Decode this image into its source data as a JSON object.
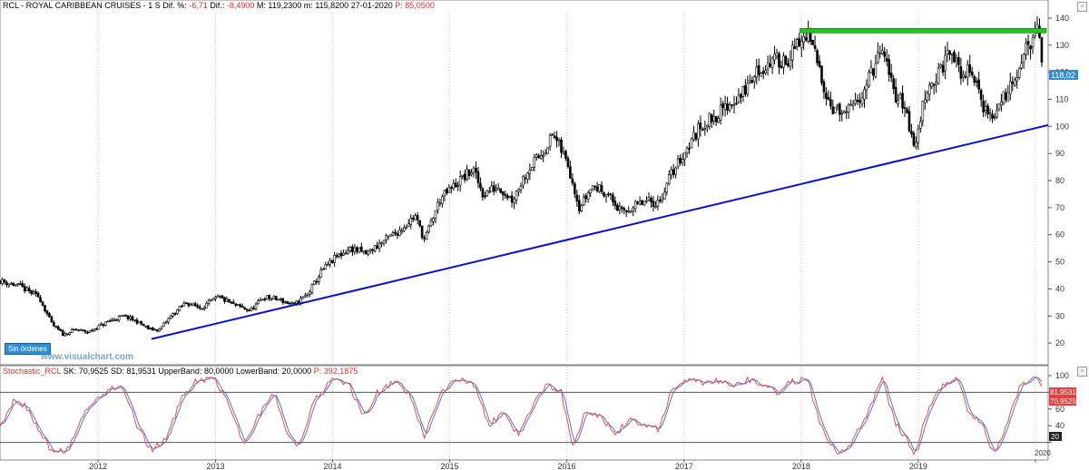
{
  "header": {
    "symbol": "RCL",
    "name": "ROYAL CARIBBEAN CRUISES",
    "period": "1 S",
    "dif_pct_label": "Dif. %:",
    "dif_pct": "-6,71",
    "dif_label": "Dif.:",
    "dif": "-8,4900",
    "max_label": "M:",
    "max": "119,2300",
    "min_label": "m:",
    "min": "115,8200",
    "date": "27-01-2020",
    "price_label": "P:",
    "price": "85,0500"
  },
  "badges": {
    "orders": "Sin órdenes",
    "watermark": "www.visualchart.com",
    "last_price": "118,02"
  },
  "stoch_header": {
    "name": "Stochastic_RCL",
    "sk_label": "SK:",
    "sk": "70,9525",
    "sd_label": "SD:",
    "sd": "81,9531",
    "upper_label": "UpperBand:",
    "upper": "80,0000",
    "lower_label": "LowerBand:",
    "lower": "20,0000",
    "p_label": "P:",
    "p": "392,1875"
  },
  "stoch_labels": {
    "sd_value": "81,9531",
    "sk_value": "70,9525",
    "lower_band": "20",
    "year_cut": "2020"
  },
  "colors": {
    "bullish": "#000000",
    "trendline": "#0a10c8",
    "resistance": "#22c422",
    "sk_line": "#e05050",
    "sd_line": "#4a78d8",
    "price_tag": "#2f8fd6",
    "stoch_tag": "#e04040"
  },
  "chart_data": [
    {
      "type": "candlestick",
      "title": "RCL - ROYAL CARIBBEAN CRUISES - 1 S",
      "ylim": [
        12,
        142
      ],
      "yticks": [
        20,
        30,
        40,
        50,
        60,
        70,
        80,
        90,
        100,
        110,
        120,
        130,
        140
      ],
      "xlim": [
        "2011-03-01",
        "2020-02-10"
      ],
      "xticks": [
        "2012",
        "2013",
        "2014",
        "2015",
        "2016",
        "2017",
        "2018",
        "2019",
        "2020"
      ],
      "last_price": 118.02,
      "price_path": [
        [
          "2011-03-01",
          43
        ],
        [
          "2011-05-01",
          41
        ],
        [
          "2011-07-01",
          37
        ],
        [
          "2011-08-10",
          27
        ],
        [
          "2011-09-15",
          23
        ],
        [
          "2011-10-20",
          25
        ],
        [
          "2011-12-01",
          24
        ],
        [
          "2012-02-01",
          28
        ],
        [
          "2012-03-20",
          30
        ],
        [
          "2012-05-01",
          28
        ],
        [
          "2012-06-10",
          25
        ],
        [
          "2012-07-10",
          25
        ],
        [
          "2012-08-15",
          30
        ],
        [
          "2012-10-01",
          35
        ],
        [
          "2012-11-15",
          33
        ],
        [
          "2013-01-10",
          37
        ],
        [
          "2013-03-01",
          34
        ],
        [
          "2013-04-20",
          32
        ],
        [
          "2013-06-01",
          37
        ],
        [
          "2013-07-20",
          36
        ],
        [
          "2013-09-01",
          34
        ],
        [
          "2013-10-15",
          38
        ],
        [
          "2013-12-01",
          47
        ],
        [
          "2014-01-15",
          52
        ],
        [
          "2014-03-01",
          55
        ],
        [
          "2014-04-15",
          53
        ],
        [
          "2014-06-01",
          57
        ],
        [
          "2014-08-01",
          62
        ],
        [
          "2014-09-15",
          67
        ],
        [
          "2014-10-15",
          58
        ],
        [
          "2014-12-01",
          73
        ],
        [
          "2015-02-01",
          80
        ],
        [
          "2015-03-15",
          84
        ],
        [
          "2015-04-15",
          75
        ],
        [
          "2015-06-01",
          78
        ],
        [
          "2015-07-15",
          73
        ],
        [
          "2015-09-01",
          84
        ],
        [
          "2015-10-15",
          90
        ],
        [
          "2015-11-20",
          97
        ],
        [
          "2016-01-05",
          86
        ],
        [
          "2016-02-10",
          70
        ],
        [
          "2016-03-20",
          78
        ],
        [
          "2016-05-01",
          76
        ],
        [
          "2016-06-20",
          68
        ],
        [
          "2016-07-20",
          70
        ],
        [
          "2016-09-01",
          72
        ],
        [
          "2016-10-15",
          72
        ],
        [
          "2016-11-20",
          82
        ],
        [
          "2017-01-10",
          92
        ],
        [
          "2017-02-20",
          100
        ],
        [
          "2017-04-10",
          104
        ],
        [
          "2017-05-20",
          108
        ],
        [
          "2017-07-01",
          112
        ],
        [
          "2017-08-15",
          120
        ],
        [
          "2017-10-01",
          124
        ],
        [
          "2017-11-20",
          125
        ],
        [
          "2018-01-20",
          134
        ],
        [
          "2018-02-20",
          124
        ],
        [
          "2018-04-01",
          108
        ],
        [
          "2018-05-15",
          104
        ],
        [
          "2018-06-20",
          108
        ],
        [
          "2018-08-01",
          118
        ],
        [
          "2018-09-10",
          128
        ],
        [
          "2018-10-20",
          112
        ],
        [
          "2018-11-20",
          108
        ],
        [
          "2018-12-20",
          91
        ],
        [
          "2019-01-25",
          114
        ],
        [
          "2019-03-01",
          118
        ],
        [
          "2019-04-10",
          128
        ],
        [
          "2019-05-10",
          120
        ],
        [
          "2019-06-20",
          120
        ],
        [
          "2019-07-20",
          108
        ],
        [
          "2019-08-20",
          103
        ],
        [
          "2019-09-20",
          110
        ],
        [
          "2019-11-01",
          120
        ],
        [
          "2019-12-10",
          130
        ],
        [
          "2020-01-10",
          135
        ],
        [
          "2020-01-27",
          118
        ]
      ]
    },
    {
      "type": "line",
      "title": "Stochastic_RCL",
      "ylim": [
        0,
        100
      ],
      "yticks": [
        0,
        20,
        40,
        60,
        80,
        100
      ],
      "upper_band": 80,
      "lower_band": 20,
      "sk_last": 70.9525,
      "sd_last": 81.9531,
      "series": [
        {
          "name": "SK",
          "values": []
        },
        {
          "name": "SD",
          "values": []
        }
      ],
      "sk_path": [
        [
          "2011-03-01",
          40
        ],
        [
          "2011-04-15",
          70
        ],
        [
          "2011-06-01",
          60
        ],
        [
          "2011-07-01",
          30
        ],
        [
          "2011-08-15",
          8
        ],
        [
          "2011-10-01",
          12
        ],
        [
          "2011-11-20",
          55
        ],
        [
          "2012-01-20",
          80
        ],
        [
          "2012-03-15",
          90
        ],
        [
          "2012-05-01",
          40
        ],
        [
          "2012-06-15",
          10
        ],
        [
          "2012-08-01",
          25
        ],
        [
          "2012-09-20",
          75
        ],
        [
          "2012-11-01",
          95
        ],
        [
          "2013-01-01",
          96
        ],
        [
          "2013-02-15",
          60
        ],
        [
          "2013-04-01",
          18
        ],
        [
          "2013-05-20",
          55
        ],
        [
          "2013-07-01",
          80
        ],
        [
          "2013-08-15",
          30
        ],
        [
          "2013-09-20",
          15
        ],
        [
          "2013-11-01",
          70
        ],
        [
          "2014-01-01",
          95
        ],
        [
          "2014-02-20",
          90
        ],
        [
          "2014-04-10",
          50
        ],
        [
          "2014-05-20",
          80
        ],
        [
          "2014-07-15",
          92
        ],
        [
          "2014-09-01",
          75
        ],
        [
          "2014-10-15",
          25
        ],
        [
          "2014-12-01",
          80
        ],
        [
          "2015-02-01",
          97
        ],
        [
          "2015-03-20",
          90
        ],
        [
          "2015-05-01",
          40
        ],
        [
          "2015-06-15",
          55
        ],
        [
          "2015-08-01",
          30
        ],
        [
          "2015-09-20",
          65
        ],
        [
          "2015-11-01",
          90
        ],
        [
          "2015-12-15",
          80
        ],
        [
          "2016-01-20",
          15
        ],
        [
          "2016-03-01",
          60
        ],
        [
          "2016-04-20",
          50
        ],
        [
          "2016-06-01",
          30
        ],
        [
          "2016-07-20",
          50
        ],
        [
          "2016-09-01",
          40
        ],
        [
          "2016-10-15",
          35
        ],
        [
          "2016-11-20",
          80
        ],
        [
          "2017-01-10",
          95
        ],
        [
          "2017-03-01",
          92
        ],
        [
          "2017-04-20",
          95
        ],
        [
          "2017-06-01",
          88
        ],
        [
          "2017-07-20",
          95
        ],
        [
          "2017-09-01",
          90
        ],
        [
          "2017-10-20",
          80
        ],
        [
          "2017-12-01",
          92
        ],
        [
          "2018-01-20",
          98
        ],
        [
          "2018-03-01",
          40
        ],
        [
          "2018-04-20",
          8
        ],
        [
          "2018-06-01",
          15
        ],
        [
          "2018-07-20",
          50
        ],
        [
          "2018-09-10",
          96
        ],
        [
          "2018-10-20",
          45
        ],
        [
          "2018-12-01",
          20
        ],
        [
          "2018-12-20",
          5
        ],
        [
          "2019-02-01",
          60
        ],
        [
          "2019-03-20",
          90
        ],
        [
          "2019-05-01",
          95
        ],
        [
          "2019-06-10",
          55
        ],
        [
          "2019-07-20",
          40
        ],
        [
          "2019-08-25",
          5
        ],
        [
          "2019-10-01",
          40
        ],
        [
          "2019-11-15",
          88
        ],
        [
          "2019-12-20",
          97
        ],
        [
          "2020-01-20",
          92
        ],
        [
          "2020-01-27",
          71
        ]
      ]
    }
  ]
}
